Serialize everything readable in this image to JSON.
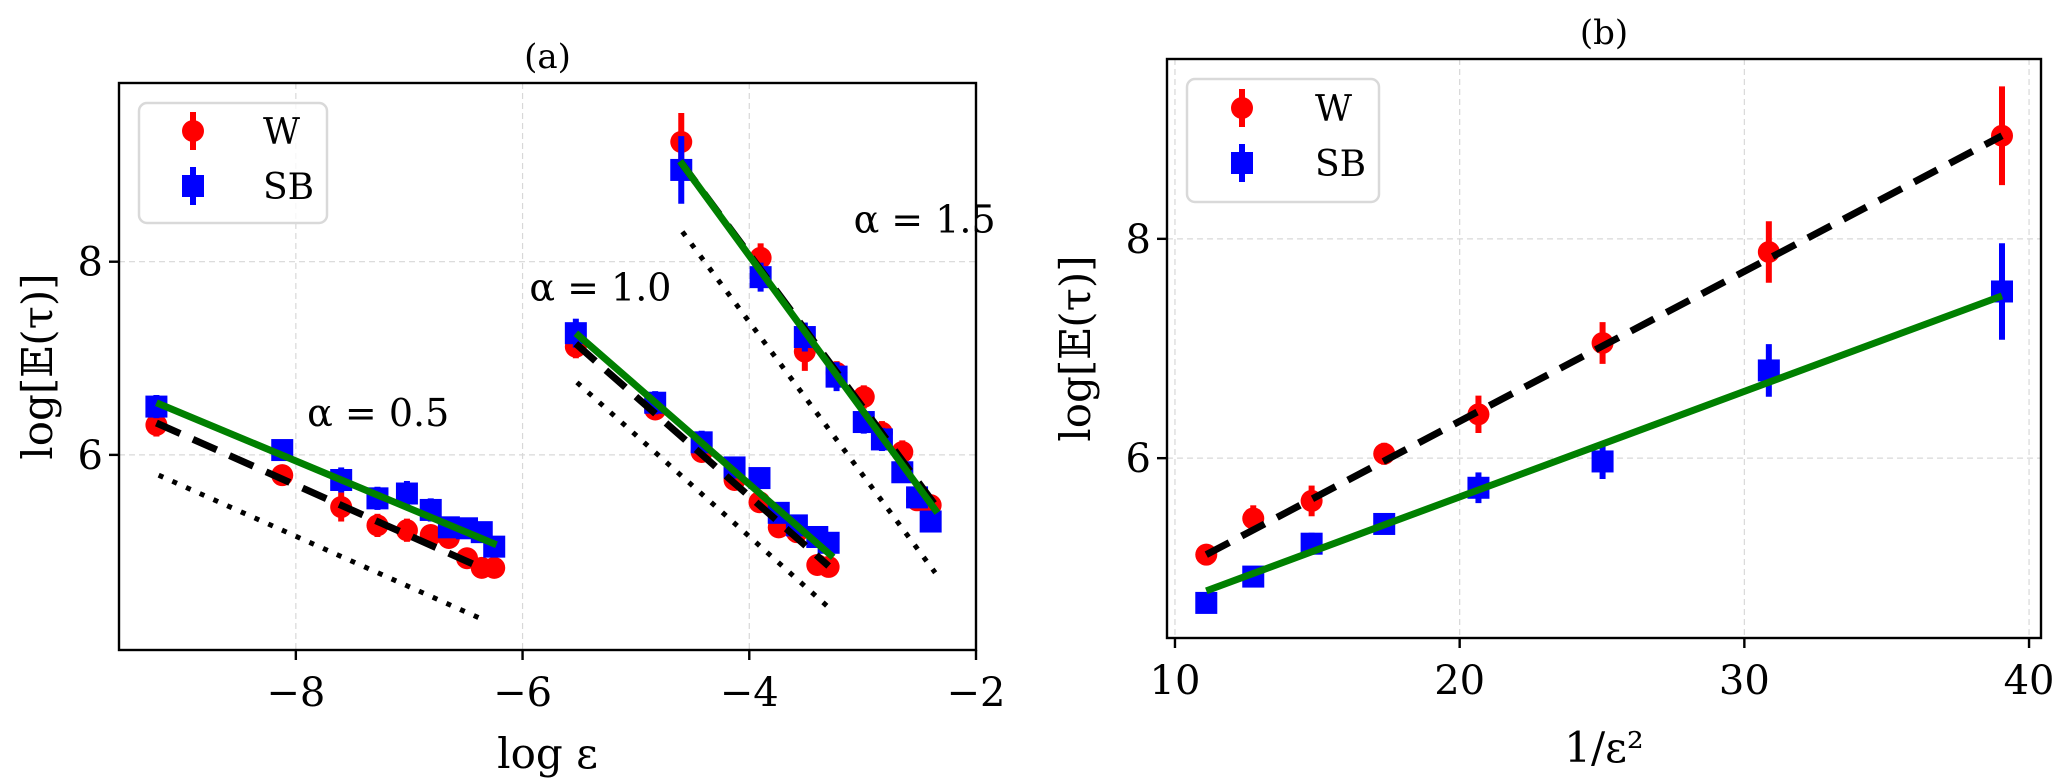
{
  "chart_data": [
    {
      "id": "a",
      "type": "scatter",
      "title": "(a)",
      "xlabel": "log ε",
      "ylabel": "log[𝔼(τ)]",
      "xlim": [
        -9.56,
        -2.0
      ],
      "ylim": [
        3.98,
        9.85
      ],
      "xticks": [
        -8,
        -6,
        -4,
        -2
      ],
      "xtick_labels": [
        "−8",
        "−6",
        "−4",
        "−2"
      ],
      "yticks": [
        6,
        8
      ],
      "ytick_labels": [
        "6",
        "8"
      ],
      "grid": true,
      "legend": {
        "placement": "top-left",
        "entries": [
          {
            "label": "W",
            "marker": "circle",
            "color": "#ff0000"
          },
          {
            "label": "SB",
            "marker": "square",
            "color": "#0000ff"
          }
        ]
      },
      "groups": [
        {
          "annotation": "α = 0.5",
          "annotation_pos": [
            -7.9,
            6.3
          ],
          "series": [
            {
              "name": "W",
              "color": "#ff0000",
              "marker": "circle",
              "x": [
                -9.23,
                -8.12,
                -7.6,
                -7.28,
                -7.02,
                -6.81,
                -6.65,
                -6.49,
                -6.36,
                -6.25
              ],
              "y": [
                6.31,
                5.79,
                5.46,
                5.27,
                5.22,
                5.17,
                5.14,
                4.93,
                4.83,
                4.83
              ],
              "yerr": [
                0.12,
                0.1,
                0.15,
                0.12,
                0.12,
                0.1,
                0.1,
                0.1,
                0.1,
                0.1
              ]
            },
            {
              "name": "SB",
              "color": "#0000ff",
              "marker": "square",
              "x": [
                -9.23,
                -8.12,
                -7.6,
                -7.28,
                -7.02,
                -6.81,
                -6.65,
                -6.49,
                -6.36,
                -6.25
              ],
              "y": [
                6.5,
                6.05,
                5.74,
                5.55,
                5.6,
                5.43,
                5.25,
                5.24,
                5.2,
                5.05
              ],
              "yerr": [
                0.12,
                0.1,
                0.13,
                0.12,
                0.13,
                0.12,
                0.1,
                0.1,
                0.1,
                0.1
              ]
            }
          ],
          "fit_lines": [
            {
              "name": "W fit",
              "style": "dashed",
              "color": "#000000",
              "x": [
                -9.23,
                -6.36
              ],
              "y": [
                6.33,
                4.83
              ]
            },
            {
              "name": "SB fit",
              "style": "solid",
              "color": "#008000",
              "x": [
                -9.23,
                -6.23
              ],
              "y": [
                6.54,
                5.07
              ]
            },
            {
              "name": "reference",
              "style": "dotted",
              "color": "#000000",
              "x": [
                -9.21,
                -6.34
              ],
              "y": [
                5.79,
                4.29
              ]
            }
          ]
        },
        {
          "annotation": "α = 1.0",
          "annotation_pos": [
            -5.94,
            7.6
          ],
          "series": [
            {
              "name": "W",
              "color": "#ff0000",
              "marker": "circle",
              "x": [
                -5.53,
                -4.83,
                -4.42,
                -4.13,
                -3.91,
                -3.74,
                -3.58,
                -3.4,
                -3.3
              ],
              "y": [
                7.12,
                6.47,
                6.03,
                5.74,
                5.51,
                5.25,
                5.2,
                4.86,
                4.84
              ],
              "yerr": [
                0.12,
                0.1,
                0.1,
                0.1,
                0.1,
                0.1,
                0.1,
                0.1,
                0.1
              ]
            },
            {
              "name": "SB",
              "color": "#0000ff",
              "marker": "square",
              "x": [
                -5.53,
                -4.83,
                -4.42,
                -4.13,
                -3.91,
                -3.74,
                -3.58,
                -3.4,
                -3.3
              ],
              "y": [
                7.26,
                6.54,
                6.13,
                5.87,
                5.76,
                5.4,
                5.27,
                5.15,
                5.09
              ],
              "yerr": [
                0.15,
                0.12,
                0.12,
                0.1,
                0.1,
                0.1,
                0.1,
                0.1,
                0.1
              ]
            }
          ],
          "fit_lines": [
            {
              "name": "W fit",
              "style": "dashed",
              "color": "#000000",
              "x": [
                -5.53,
                -3.3
              ],
              "y": [
                7.15,
                4.85
              ]
            },
            {
              "name": "SB fit",
              "style": "solid",
              "color": "#008000",
              "x": [
                -5.53,
                -3.26
              ],
              "y": [
                7.26,
                4.94
              ]
            },
            {
              "name": "reference",
              "style": "dotted",
              "color": "#000000",
              "x": [
                -5.52,
                -3.29
              ],
              "y": [
                6.75,
                4.41
              ]
            }
          ]
        },
        {
          "annotation": "α = 1.5",
          "annotation_pos": [
            -3.08,
            8.3
          ],
          "series": [
            {
              "name": "W",
              "color": "#ff0000",
              "marker": "circle",
              "x": [
                -4.6,
                -3.9,
                -3.51,
                -3.23,
                -2.99,
                -2.83,
                -2.65,
                -2.52,
                -2.4
              ],
              "y": [
                9.24,
                8.04,
                7.07,
                6.85,
                6.6,
                6.23,
                6.03,
                5.53,
                5.48
              ],
              "yerr": [
                0.3,
                0.15,
                0.2,
                0.12,
                0.12,
                0.12,
                0.12,
                0.1,
                0.1
              ]
            },
            {
              "name": "SB",
              "color": "#0000ff",
              "marker": "square",
              "x": [
                -4.6,
                -3.9,
                -3.51,
                -3.23,
                -2.99,
                -2.83,
                -2.65,
                -2.52,
                -2.4
              ],
              "y": [
                8.95,
                7.84,
                7.22,
                6.81,
                6.34,
                6.16,
                5.82,
                5.56,
                5.31
              ],
              "yerr": [
                0.35,
                0.15,
                0.15,
                0.15,
                0.12,
                0.12,
                0.1,
                0.1,
                0.1
              ]
            }
          ],
          "fit_lines": [
            {
              "name": "W fit",
              "style": "dashed",
              "color": "#000000",
              "x": [
                -4.61,
                -2.34
              ],
              "y": [
                9.04,
                5.45
              ]
            },
            {
              "name": "SB fit",
              "style": "solid",
              "color": "#008000",
              "x": [
                -4.61,
                -2.34
              ],
              "y": [
                9.04,
                5.4
              ]
            },
            {
              "name": "reference",
              "style": "dotted",
              "color": "#000000",
              "x": [
                -4.59,
                -2.36
              ],
              "y": [
                8.31,
                4.78
              ]
            }
          ]
        }
      ]
    },
    {
      "id": "b",
      "type": "scatter",
      "title": "(b)",
      "xlabel": "1/ε²",
      "ylabel": "log[𝔼(τ)]",
      "xlim": [
        9.72,
        40.42
      ],
      "ylim": [
        4.36,
        9.64
      ],
      "xticks": [
        10,
        20,
        30,
        40
      ],
      "xtick_labels": [
        "10",
        "20",
        "30",
        "40"
      ],
      "yticks": [
        6,
        8
      ],
      "ytick_labels": [
        "6",
        "8"
      ],
      "grid": true,
      "legend": {
        "placement": "top-left",
        "entries": [
          {
            "label": "W",
            "marker": "circle",
            "color": "#ff0000"
          },
          {
            "label": "SB",
            "marker": "square",
            "color": "#0000ff"
          }
        ]
      },
      "groups": [
        {
          "series": [
            {
              "name": "W",
              "color": "#ff0000",
              "marker": "circle",
              "x": [
                11.1,
                12.75,
                14.8,
                17.35,
                20.66,
                25.02,
                30.86,
                39.05
              ],
              "y": [
                5.12,
                5.45,
                5.61,
                6.04,
                6.4,
                7.05,
                7.88,
                8.94
              ],
              "yerr": [
                0.08,
                0.12,
                0.14,
                0.1,
                0.17,
                0.19,
                0.28,
                0.45
              ]
            },
            {
              "name": "SB",
              "color": "#0000ff",
              "marker": "square",
              "x": [
                11.1,
                12.75,
                14.8,
                17.35,
                20.66,
                25.02,
                30.86,
                39.05
              ],
              "y": [
                4.68,
                4.92,
                5.22,
                5.4,
                5.73,
                5.97,
                6.8,
                7.52
              ],
              "yerr": [
                0.05,
                0.08,
                0.1,
                0.07,
                0.14,
                0.16,
                0.24,
                0.44
              ]
            }
          ],
          "fit_lines": [
            {
              "name": "W fit",
              "style": "dashed",
              "color": "#000000",
              "x": [
                11.1,
                39.05
              ],
              "y": [
                5.12,
                8.94
              ]
            },
            {
              "name": "SB fit",
              "style": "solid",
              "color": "#008000",
              "x": [
                11.1,
                39.05
              ],
              "y": [
                4.79,
                7.48
              ]
            }
          ]
        }
      ]
    }
  ]
}
